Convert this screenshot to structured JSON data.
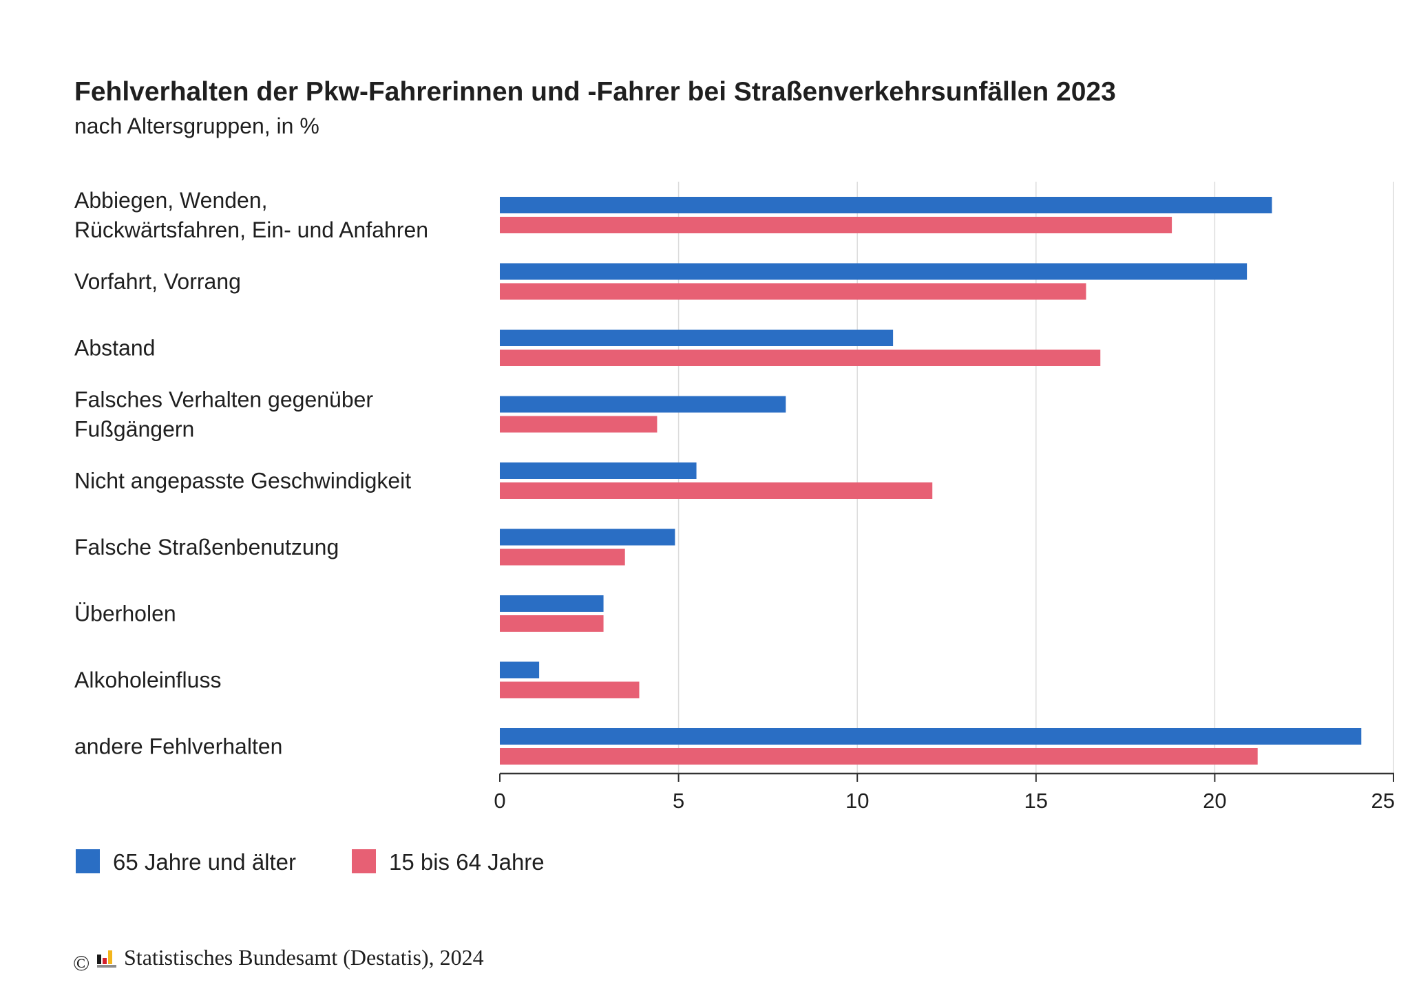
{
  "chart_data": {
    "type": "bar",
    "orientation": "horizontal",
    "title": "Fehlverhalten der Pkw-Fahrerinnen und -Fahrer bei Straßenverkehrsunfällen 2023",
    "subtitle": "nach Altersgruppen, in %",
    "categories": [
      [
        "Abbiegen, Wenden,",
        "Rückwärtsfahren, Ein- und Anfahren"
      ],
      [
        "Vorfahrt, Vorrang"
      ],
      [
        "Abstand"
      ],
      [
        "Falsches Verhalten gegenüber",
        "Fußgängern"
      ],
      [
        "Nicht angepasste Geschwindigkeit"
      ],
      [
        "Falsche Straßenbenutzung"
      ],
      [
        "Überholen"
      ],
      [
        "Alkoholeinfluss"
      ],
      [
        "andere Fehlverhalten"
      ]
    ],
    "series": [
      {
        "name": "65 Jahre und älter",
        "color": "#2a6ec4",
        "values": [
          21.6,
          20.9,
          11.0,
          8.0,
          5.5,
          4.9,
          2.9,
          1.1,
          24.1
        ]
      },
      {
        "name": "15 bis 64 Jahre",
        "color": "#e76074",
        "values": [
          18.8,
          16.4,
          16.8,
          4.4,
          12.1,
          3.5,
          2.9,
          3.9,
          21.2
        ]
      }
    ],
    "xlim": [
      0,
      25
    ],
    "xticks": [
      "0",
      "5",
      "10",
      "15",
      "20",
      "25"
    ],
    "xlabel": "",
    "ylabel": "",
    "grid": true,
    "legend_position": "bottom-left",
    "gridline_color": "#dcdcdc",
    "axis_color": "#333333"
  },
  "source": "Statistisches Bundesamt (Destatis), 2024",
  "copyright_symbol": "©",
  "logo_colors": [
    "#1a1a1a",
    "#d4202c",
    "#f3b51c"
  ]
}
